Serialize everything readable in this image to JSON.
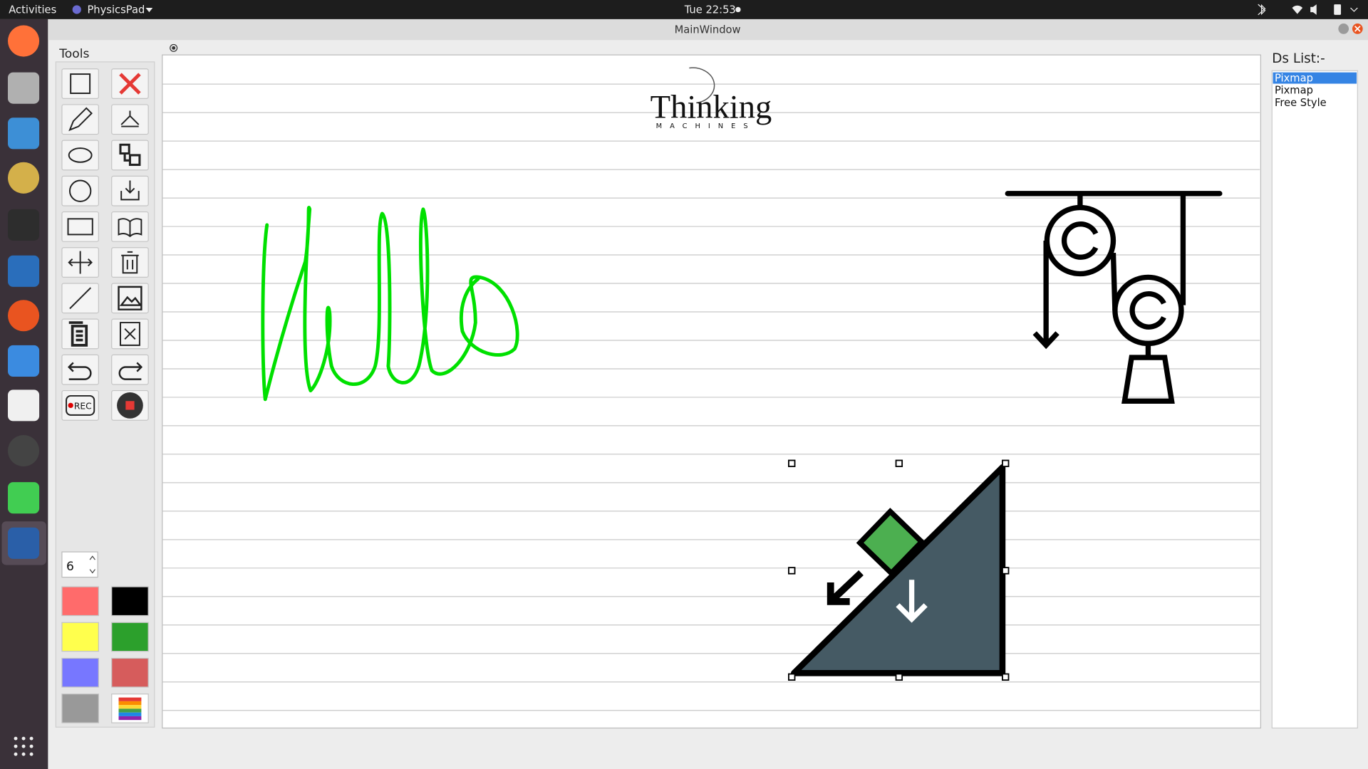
{
  "top_bar": {
    "activities": "Activities",
    "app_menu": "PhysicsPad",
    "clock": "Tue 22:53"
  },
  "window": {
    "title": "MainWindow"
  },
  "tools": {
    "title": "Tools",
    "pen_size": 6,
    "rec_label": "REC"
  },
  "canvas": {
    "logo_title": "Thinking",
    "logo_subtitle": "MACHINES"
  },
  "ds_list": {
    "title": "Ds List:-",
    "items": [
      "Pixmap",
      "Pixmap",
      "Free Style"
    ],
    "selected": 0
  }
}
